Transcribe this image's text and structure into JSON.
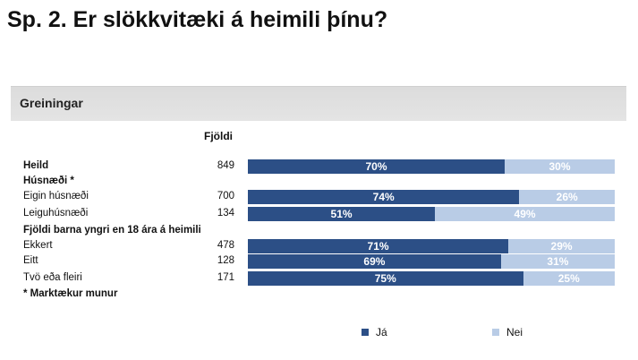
{
  "title": "Sp. 2. Er slökkvitæki á heimili þínu?",
  "section_label": "Greiningar",
  "count_header": "Fjöldi",
  "footnote": "* Marktækur munur",
  "colors": {
    "ja": "#2c4f86",
    "nei": "#b9cce6"
  },
  "chart_data": {
    "type": "bar",
    "stacked": true,
    "orientation": "horizontal",
    "xlim": [
      0,
      100
    ],
    "series": [
      {
        "name": "Já",
        "color": "#2c4f86"
      },
      {
        "name": "Nei",
        "color": "#b9cce6"
      }
    ],
    "rows": [
      {
        "kind": "data",
        "label": "Heild",
        "bold": true,
        "count": "849",
        "ja": 70,
        "nei": 30,
        "ja_label": "70%",
        "nei_label": "30%"
      },
      {
        "kind": "header",
        "label": "Húsnæði *"
      },
      {
        "kind": "data",
        "label": "Eigin húsnæði",
        "bold": false,
        "count": "700",
        "ja": 74,
        "nei": 26,
        "ja_label": "74%",
        "nei_label": "26%"
      },
      {
        "kind": "data",
        "label": "Leiguhúsnæði",
        "bold": false,
        "count": "134",
        "ja": 51,
        "nei": 49,
        "ja_label": "51%",
        "nei_label": "49%"
      },
      {
        "kind": "header",
        "label": "Fjöldi barna yngri en 18 ára á heimili"
      },
      {
        "kind": "data",
        "label": "Ekkert",
        "bold": false,
        "count": "478",
        "ja": 71,
        "nei": 29,
        "ja_label": "71%",
        "nei_label": "29%"
      },
      {
        "kind": "data",
        "label": "Eitt",
        "bold": false,
        "count": "128",
        "ja": 69,
        "nei": 31,
        "ja_label": "69%",
        "nei_label": "31%"
      },
      {
        "kind": "data",
        "label": "Tvö eða fleiri",
        "bold": false,
        "count": "171",
        "ja": 75,
        "nei": 25,
        "ja_label": "75%",
        "nei_label": "25%"
      }
    ]
  }
}
